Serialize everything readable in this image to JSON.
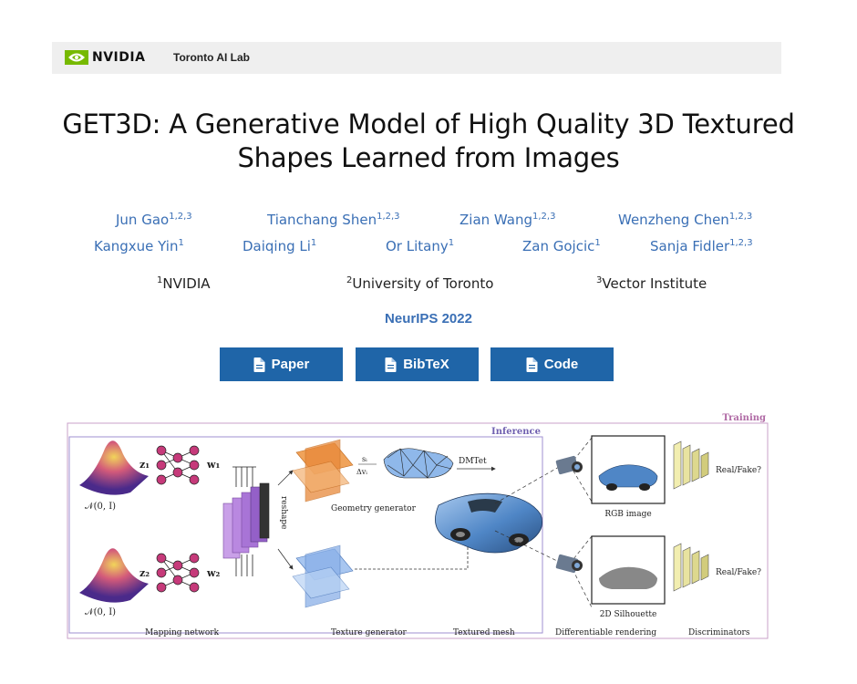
{
  "header": {
    "brand": "NVIDIA",
    "lab": "Toronto AI Lab"
  },
  "title_line1": "GET3D: A Generative Model of High Quality 3D Textured",
  "title_line2": "Shapes Learned from Images",
  "authors": [
    {
      "name": "Jun Gao",
      "sup": "1,2,3"
    },
    {
      "name": "Tianchang Shen",
      "sup": "1,2,3"
    },
    {
      "name": "Zian Wang",
      "sup": "1,2,3"
    },
    {
      "name": "Wenzheng Chen",
      "sup": "1,2,3"
    },
    {
      "name": "Kangxue Yin",
      "sup": "1"
    },
    {
      "name": "Daiqing Li",
      "sup": "1"
    },
    {
      "name": "Or Litany",
      "sup": "1"
    },
    {
      "name": "Zan Gojcic",
      "sup": "1"
    },
    {
      "name": "Sanja Fidler",
      "sup": "1,2,3"
    }
  ],
  "affiliations": [
    {
      "sup": "1",
      "name": "NVIDIA"
    },
    {
      "sup": "2",
      "name": "University of Toronto"
    },
    {
      "sup": "3",
      "name": "Vector Institute"
    }
  ],
  "venue": "NeurIPS 2022",
  "buttons": {
    "paper": "Paper",
    "bibtex": "BibTeX",
    "code": "Code"
  },
  "figure": {
    "training": "Training",
    "inference": "Inference",
    "n1": "𝒩(0, I)",
    "n2": "𝒩(0, I)",
    "z1": "z₁",
    "z2": "z₂",
    "w1": "w₁",
    "w2": "w₂",
    "reshape": "reshape",
    "sdf": "sᵢ",
    "dv": "Δvᵢ",
    "dmtet": "DMTet",
    "geometry_generator": "Geometry generator",
    "rgb_image": "RGB image",
    "silhouette": "2D Silhouette",
    "real_fake_1": "Real/Fake?",
    "real_fake_2": "Real/Fake?",
    "mapping_network": "Mapping network",
    "texture_generator": "Texture generator",
    "textured_mesh": "Textured mesh",
    "diff_rendering": "Differentiable rendering",
    "discriminators": "Discriminators",
    "colors": {
      "training_border": "#c8a0c8",
      "inference_border": "#9f8fd0",
      "geometry": "#e8893a",
      "texture": "#8ab0e8",
      "car": "#4f86c6",
      "disc": "#e8e3a0"
    }
  }
}
